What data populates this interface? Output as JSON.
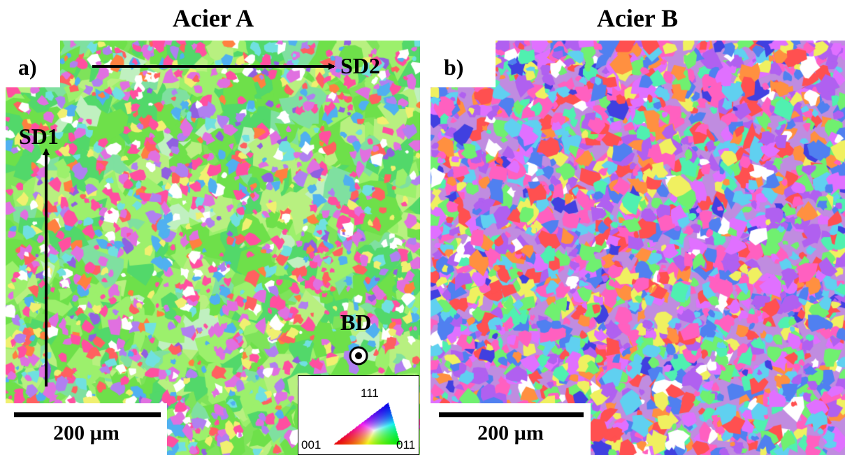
{
  "figure": {
    "panels": [
      {
        "id": "a",
        "title": "Acier A",
        "label": "a)",
        "scale_bar_text": "200 µm",
        "axis_sd2": "SD2",
        "axis_sd1": "SD1",
        "axis_bd": "BD",
        "dominant_color": "#7ee35a"
      },
      {
        "id": "b",
        "title": "Acier B",
        "label": "b)",
        "scale_bar_text": "200 µm"
      }
    ],
    "legend": {
      "corner_111": "111",
      "corner_001": "001",
      "corner_011": "011",
      "colors": {
        "001": "#ff0000",
        "011": "#00ff00",
        "111": "#0000ff"
      }
    }
  }
}
